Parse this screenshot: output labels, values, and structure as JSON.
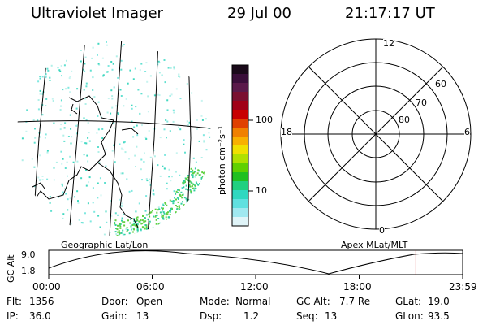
{
  "header": {
    "instrument": "Ultraviolet Imager",
    "date": "29 Jul 00",
    "time": "21:17:17 UT"
  },
  "colorbar": {
    "label": "photon cm⁻²s⁻¹",
    "ticks": [
      "100",
      "10"
    ],
    "colors": [
      "#1a0a1a",
      "#3a0f3a",
      "#5a1a4a",
      "#7a1030",
      "#a00018",
      "#c80000",
      "#e04000",
      "#f08000",
      "#f8b000",
      "#f0e000",
      "#b0e000",
      "#60d000",
      "#20c020",
      "#20d080",
      "#30d8c0",
      "#60e0e0",
      "#a0e8f0",
      "#e0f4f8"
    ]
  },
  "polar": {
    "mlt_labels": {
      "top": "12",
      "left": "18",
      "right": "6",
      "bottom": "0"
    },
    "lat_labels": [
      "60",
      "70",
      "80"
    ]
  },
  "timeline": {
    "title_left": "Geographic Lat/Lon",
    "title_right": "Apex MLat/MLT",
    "ylabel": "GC Alt",
    "y_max": "9.0",
    "y_min": "1.8",
    "x_ticks": [
      "00:00",
      "06:00",
      "12:00",
      "18:00",
      "23:59"
    ],
    "current_marker_hour": 21.29,
    "marker_color": "#cc0000"
  },
  "info": {
    "rows": [
      [
        {
          "k": "Flt:",
          "v": "1356"
        },
        {
          "k": "Door:",
          "v": "Open"
        },
        {
          "k": "Mode:",
          "v": "Normal"
        },
        {
          "k": "GC Alt:",
          "v": "7.7 Re"
        },
        {
          "k": "GLat:",
          "v": "19.0"
        }
      ],
      [
        {
          "k": "IP:",
          "v": "36.0"
        },
        {
          "k": "Gain:",
          "v": "13"
        },
        {
          "k": "Dsp:",
          "v": "1.2"
        },
        {
          "k": "Seq:",
          "v": "13"
        },
        {
          "k": "GLon:",
          "v": "93.5"
        }
      ]
    ]
  }
}
